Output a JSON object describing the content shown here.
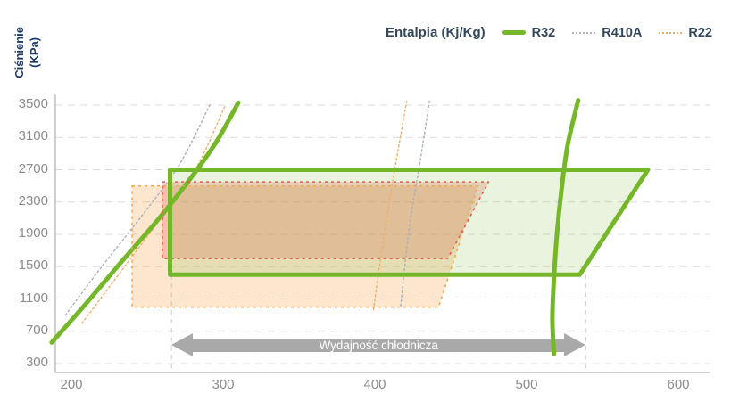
{
  "chart_data": {
    "type": "line",
    "title": "",
    "xlabel": "Entalpia (Kj/Kg)",
    "ylabel": "Ciśnienie (KPa)",
    "x_axis": {
      "ticks": [
        200,
        300,
        400,
        500,
        600
      ],
      "range": [
        190,
        621
      ]
    },
    "y_axis": {
      "title_line1": "Ciśnienie",
      "title_line2": "(KPa)",
      "ticks": [
        3500,
        3100,
        2700,
        2300,
        1900,
        1500,
        1100,
        700,
        300
      ],
      "range": [
        190,
        3590
      ],
      "gridlines": true
    },
    "legend": {
      "title": "Entalpia (Kj/Kg)",
      "items": [
        {
          "name": "R32",
          "color": "#76b72a",
          "line_style": "solid"
        },
        {
          "name": "R410A",
          "color": "#a8b0bd",
          "line_style": "dotted"
        },
        {
          "name": "R22",
          "color": "#edb06a",
          "line_style": "dotted"
        }
      ]
    },
    "cycles": [
      {
        "name": "R22",
        "points": [
          [
            240,
            2500
          ],
          [
            468,
            2500
          ],
          [
            442,
            1000
          ],
          [
            240,
            1000
          ]
        ],
        "stroke": "#f3a64a",
        "fill": "rgba(243,166,74,0.28)",
        "dash": "3 4",
        "width": 1.5
      },
      {
        "name": "R410A",
        "points": [
          [
            260,
            2550
          ],
          [
            475,
            2550
          ],
          [
            448,
            1600
          ],
          [
            260,
            1600
          ]
        ],
        "stroke": "#e05a50",
        "fill": "rgba(224,90,80,0.26)",
        "dash": "3 4",
        "width": 1.5
      },
      {
        "name": "R32",
        "points": [
          [
            265,
            2700
          ],
          [
            580,
            2700
          ],
          [
            535,
            1400
          ],
          [
            265,
            1400
          ]
        ],
        "stroke": "#76b72a",
        "fill": "rgba(118,183,42,0.16)",
        "dash": null,
        "width": 5
      }
    ],
    "saturation_domes": [
      {
        "name": "R410A",
        "color": "#a8b0bd",
        "width": 1.4,
        "dash": "2 3",
        "left": [
          [
            196,
            900
          ],
          [
            220,
            1500
          ],
          [
            246,
            2120
          ],
          [
            271,
            2760
          ],
          [
            292,
            3530
          ]
        ],
        "right": [
          [
            436,
            3550
          ],
          [
            430,
            2820
          ],
          [
            424,
            2150
          ],
          [
            420,
            1550
          ],
          [
            417,
            1000
          ]
        ]
      },
      {
        "name": "R22",
        "color": "#edb06a",
        "width": 1.4,
        "dash": "2 3",
        "left": [
          [
            207,
            800
          ],
          [
            233,
            1450
          ],
          [
            259,
            2100
          ],
          [
            283,
            2750
          ],
          [
            301,
            3480
          ]
        ],
        "right": [
          [
            421,
            3550
          ],
          [
            414,
            2800
          ],
          [
            408,
            2120
          ],
          [
            403,
            1500
          ],
          [
            399,
            950
          ]
        ]
      },
      {
        "name": "R32",
        "color": "#76b72a",
        "width": 5,
        "dash": null,
        "left": [
          [
            187,
            560
          ],
          [
            210,
            1050
          ],
          [
            233,
            1560
          ],
          [
            257,
            2080
          ],
          [
            278,
            2580
          ],
          [
            295,
            3030
          ],
          [
            310,
            3530
          ]
        ],
        "right": [
          [
            534,
            3560
          ],
          [
            527,
            3000
          ],
          [
            523,
            2450
          ],
          [
            520,
            1900
          ],
          [
            518,
            1350
          ],
          [
            517,
            850
          ],
          [
            518,
            420
          ]
        ]
      }
    ],
    "capacity_arrow": {
      "label": "Wydajność chłodnicza",
      "from_enthalpy": 266,
      "to_enthalpy": 539,
      "color": "#a9a9a9",
      "text_color": "#ffffff"
    },
    "guides_enthalpy": [
      266,
      539
    ]
  },
  "colors": {
    "background": "#ffffff",
    "axis": "#c0c0c0",
    "grid": "#dcdcdc",
    "guide": "#c9c9c9",
    "tick_text": "#8c8c8c",
    "axis_title_text": "#1c3b66",
    "legend_text": "#33475b"
  }
}
